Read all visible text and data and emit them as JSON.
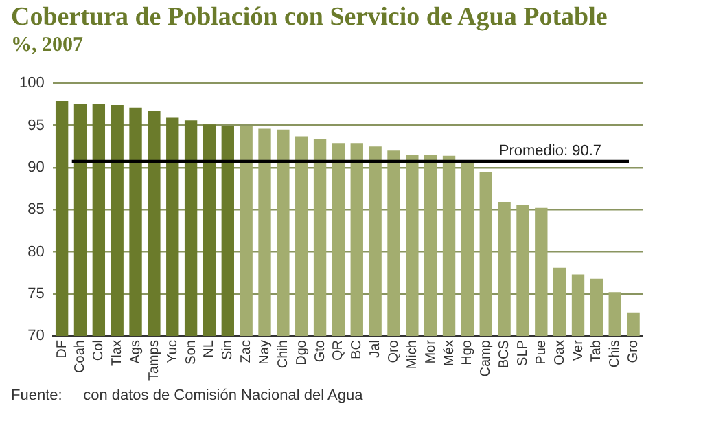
{
  "chart_data": {
    "type": "bar",
    "title": "Cobertura de Población con Servicio de Agua Potable",
    "subtitle": "%, 2007",
    "categories": [
      "DF",
      "Coah",
      "Col",
      "Tlax",
      "Ags",
      "Tamps",
      "Yuc",
      "Son",
      "NL",
      "Sin",
      "Zac",
      "Nay",
      "Chih",
      "Dgo",
      "Gto",
      "QR",
      "BC",
      "Jal",
      "Qro",
      "Mich",
      "Mor",
      "Méx",
      "Hgo",
      "Camp",
      "BCS",
      "SLP",
      "Pue",
      "Oax",
      "Ver",
      "Tab",
      "Chis",
      "Gro"
    ],
    "values": [
      97.9,
      97.5,
      97.5,
      97.4,
      97.1,
      96.7,
      95.9,
      95.6,
      95.1,
      94.9,
      94.9,
      94.6,
      94.5,
      93.7,
      93.4,
      92.9,
      92.9,
      92.5,
      92.0,
      91.5,
      91.5,
      91.4,
      90.8,
      89.5,
      85.9,
      85.5,
      85.2,
      78.1,
      77.3,
      76.8,
      75.2,
      72.8
    ],
    "colors": [
      "#6b7b2b",
      "#6b7b2b",
      "#6b7b2b",
      "#6b7b2b",
      "#6b7b2b",
      "#6b7b2b",
      "#6b7b2b",
      "#6b7b2b",
      "#6b7b2b",
      "#6b7b2b",
      "#a3ad6f",
      "#a3ad6f",
      "#a3ad6f",
      "#a3ad6f",
      "#a3ad6f",
      "#a3ad6f",
      "#a3ad6f",
      "#a3ad6f",
      "#a3ad6f",
      "#a3ad6f",
      "#a3ad6f",
      "#a3ad6f",
      "#a3ad6f",
      "#a3ad6f",
      "#a3ad6f",
      "#a3ad6f",
      "#a3ad6f",
      "#a3ad6f",
      "#a3ad6f",
      "#a3ad6f",
      "#a3ad6f",
      "#a3ad6f"
    ],
    "ylim": [
      70,
      100
    ],
    "yticks": [
      70,
      75,
      80,
      85,
      90,
      95,
      100
    ],
    "grid": "y",
    "ref_lines": [
      {
        "axis": "y",
        "value": 90.7,
        "label": "Promedio: 90.7",
        "color": "#000000"
      }
    ],
    "annotations": [
      "Fuente:     con datos de Comisión Nacional del Agua"
    ]
  }
}
